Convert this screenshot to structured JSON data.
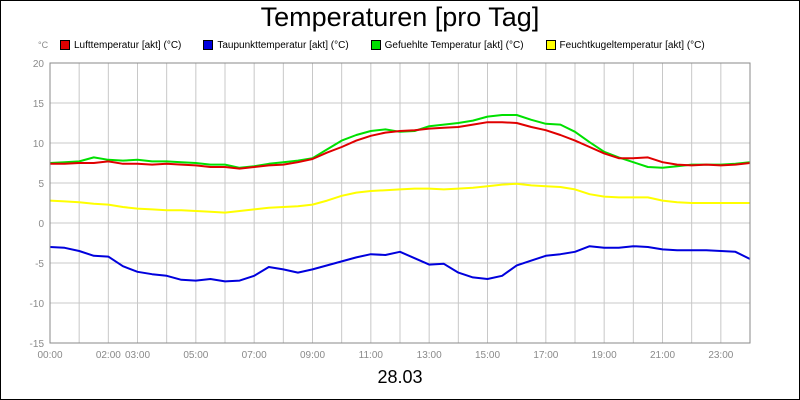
{
  "chart_data": {
    "type": "line",
    "title": "Temperaturen [pro Tag]",
    "unit_label": "°C",
    "xlabel": "28.03",
    "x_unit": "hours of day",
    "xlim": [
      0,
      24
    ],
    "ylim": [
      -15,
      20
    ],
    "y_ticks": [
      "20",
      "15",
      "10",
      "5",
      "0",
      "-5",
      "-10",
      "-15"
    ],
    "x_ticks": [
      "00:00",
      "02:00",
      "03:00",
      "05:00",
      "07:00",
      "09:00",
      "11:00",
      "13:00",
      "15:00",
      "17:00",
      "19:00",
      "21:00",
      "23:00"
    ],
    "grid": true,
    "legend_position": "top",
    "x": [
      0,
      0.5,
      1,
      1.5,
      2,
      2.5,
      3,
      3.5,
      4,
      4.5,
      5,
      5.5,
      6,
      6.5,
      7,
      7.5,
      8,
      8.5,
      9,
      9.5,
      10,
      10.5,
      11,
      11.5,
      12,
      12.5,
      13,
      13.5,
      14,
      14.5,
      15,
      15.5,
      16,
      16.5,
      17,
      17.5,
      18,
      18.5,
      19,
      19.5,
      20,
      20.5,
      21,
      21.5,
      22,
      22.5,
      23,
      23.5,
      24
    ],
    "series": [
      {
        "name": "Lufttemperatur [akt] (°C)",
        "color": "#e00000",
        "values": [
          7.4,
          7.4,
          7.5,
          7.5,
          7.7,
          7.4,
          7.4,
          7.3,
          7.4,
          7.3,
          7.2,
          7.0,
          7.0,
          6.8,
          7.0,
          7.2,
          7.3,
          7.6,
          8.0,
          8.8,
          9.5,
          10.3,
          10.9,
          11.3,
          11.5,
          11.6,
          11.8,
          11.9,
          12.0,
          12.3,
          12.6,
          12.6,
          12.5,
          12.0,
          11.6,
          11.0,
          10.3,
          9.5,
          8.7,
          8.1,
          8.1,
          8.2,
          7.6,
          7.3,
          7.2,
          7.3,
          7.2,
          7.3,
          7.5
        ]
      },
      {
        "name": "Taupunkttemperatur [akt] (°C)",
        "color": "#0000dd",
        "values": [
          -3.0,
          -3.1,
          -3.5,
          -4.1,
          -4.2,
          -5.4,
          -6.1,
          -6.4,
          -6.6,
          -7.1,
          -7.2,
          -7.0,
          -7.3,
          -7.2,
          -6.6,
          -5.5,
          -5.8,
          -6.2,
          -5.8,
          -5.3,
          -4.8,
          -4.3,
          -3.9,
          -4.0,
          -3.6,
          -4.4,
          -5.2,
          -5.1,
          -6.2,
          -6.8,
          -7.0,
          -6.6,
          -5.3,
          -4.7,
          -4.1,
          -3.9,
          -3.6,
          -2.9,
          -3.1,
          -3.1,
          -2.9,
          -3.0,
          -3.3,
          -3.4,
          -3.4,
          -3.4,
          -3.5,
          -3.6,
          -4.5
        ]
      },
      {
        "name": "Gefuehlte Temperatur [akt] (°C)",
        "color": "#00e000",
        "values": [
          7.5,
          7.6,
          7.7,
          8.2,
          7.9,
          7.8,
          7.9,
          7.7,
          7.7,
          7.6,
          7.5,
          7.3,
          7.3,
          6.9,
          7.1,
          7.4,
          7.6,
          7.8,
          8.1,
          9.2,
          10.3,
          11.0,
          11.5,
          11.7,
          11.4,
          11.5,
          12.1,
          12.3,
          12.5,
          12.8,
          13.3,
          13.5,
          13.5,
          12.9,
          12.4,
          12.3,
          11.4,
          10.1,
          8.9,
          8.2,
          7.6,
          7.0,
          6.9,
          7.1,
          7.3,
          7.3,
          7.3,
          7.4,
          7.6
        ]
      },
      {
        "name": "Feuchtkugeltemperatur [akt] (°C)",
        "color": "#ffff00",
        "values": [
          2.8,
          2.7,
          2.6,
          2.4,
          2.3,
          2.0,
          1.8,
          1.7,
          1.6,
          1.6,
          1.5,
          1.4,
          1.3,
          1.5,
          1.7,
          1.9,
          2.0,
          2.1,
          2.3,
          2.8,
          3.4,
          3.8,
          4.0,
          4.1,
          4.2,
          4.3,
          4.3,
          4.2,
          4.3,
          4.4,
          4.6,
          4.8,
          4.9,
          4.7,
          4.6,
          4.5,
          4.2,
          3.6,
          3.3,
          3.2,
          3.2,
          3.2,
          2.8,
          2.6,
          2.5,
          2.5,
          2.5,
          2.5,
          2.5
        ]
      }
    ]
  }
}
